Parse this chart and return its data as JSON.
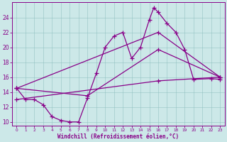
{
  "xlabel": "Windchill (Refroidissement éolien,°C)",
  "bg_color": "#cce8e8",
  "line_color": "#880088",
  "xlim": [
    -0.5,
    23.5
  ],
  "ylim": [
    9.5,
    26.0
  ],
  "xticks": [
    0,
    1,
    2,
    3,
    4,
    5,
    6,
    7,
    8,
    9,
    10,
    11,
    12,
    13,
    14,
    15,
    16,
    17,
    18,
    19,
    20,
    21,
    22,
    23
  ],
  "yticks": [
    10,
    12,
    14,
    16,
    18,
    20,
    22,
    24
  ],
  "series1": [
    [
      0,
      14.5
    ],
    [
      1,
      13.0
    ],
    [
      2,
      13.0
    ],
    [
      3,
      12.3
    ],
    [
      4,
      10.7
    ],
    [
      5,
      10.2
    ],
    [
      6,
      10.0
    ],
    [
      7,
      10.0
    ],
    [
      8,
      13.2
    ],
    [
      9,
      16.5
    ],
    [
      10,
      20.0
    ],
    [
      11,
      21.5
    ],
    [
      12,
      22.0
    ],
    [
      13,
      18.5
    ],
    [
      14,
      20.0
    ],
    [
      15,
      23.7
    ],
    [
      15.5,
      25.3
    ],
    [
      16,
      24.7
    ],
    [
      17,
      23.2
    ],
    [
      18,
      22.0
    ],
    [
      19,
      19.7
    ],
    [
      20,
      15.7
    ],
    [
      22,
      15.8
    ],
    [
      23,
      15.7
    ]
  ],
  "series2": [
    [
      0,
      14.5
    ],
    [
      16,
      22.0
    ],
    [
      23,
      16.0
    ]
  ],
  "series3": [
    [
      0,
      14.5
    ],
    [
      8,
      13.5
    ],
    [
      16,
      19.7
    ],
    [
      23,
      16.0
    ]
  ],
  "series4": [
    [
      0,
      13.0
    ],
    [
      16,
      15.5
    ],
    [
      23,
      16.0
    ]
  ]
}
